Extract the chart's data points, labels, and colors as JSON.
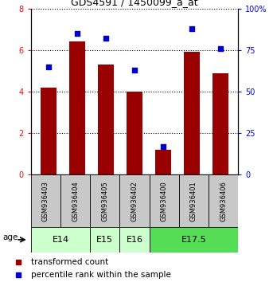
{
  "title": "GDS4591 / 1450099_a_at",
  "samples": [
    "GSM936403",
    "GSM936404",
    "GSM936405",
    "GSM936402",
    "GSM936400",
    "GSM936401",
    "GSM936406"
  ],
  "bar_values": [
    4.2,
    6.4,
    5.3,
    4.0,
    1.2,
    5.9,
    4.9
  ],
  "dot_values_pct": [
    65,
    85,
    82,
    63,
    17,
    88,
    76
  ],
  "bar_color": "#990000",
  "dot_color": "#0000cc",
  "ylim_left": [
    0,
    8
  ],
  "ylim_right": [
    0,
    100
  ],
  "yticks_left": [
    0,
    2,
    4,
    6,
    8
  ],
  "yticks_right": [
    0,
    25,
    50,
    75,
    100
  ],
  "ytick_labels_right": [
    "0",
    "25",
    "50",
    "75",
    "100%"
  ],
  "age_groups": [
    {
      "label": "E14",
      "indices": [
        0,
        1
      ],
      "color": "#ccffcc"
    },
    {
      "label": "E15",
      "indices": [
        2
      ],
      "color": "#ccffcc"
    },
    {
      "label": "E16",
      "indices": [
        3
      ],
      "color": "#ccffcc"
    },
    {
      "label": "E17.5",
      "indices": [
        4,
        5,
        6
      ],
      "color": "#55dd55"
    }
  ],
  "sample_box_color": "#c8c8c8",
  "legend_red_label": "transformed count",
  "legend_blue_label": "percentile rank within the sample",
  "age_label": "age"
}
